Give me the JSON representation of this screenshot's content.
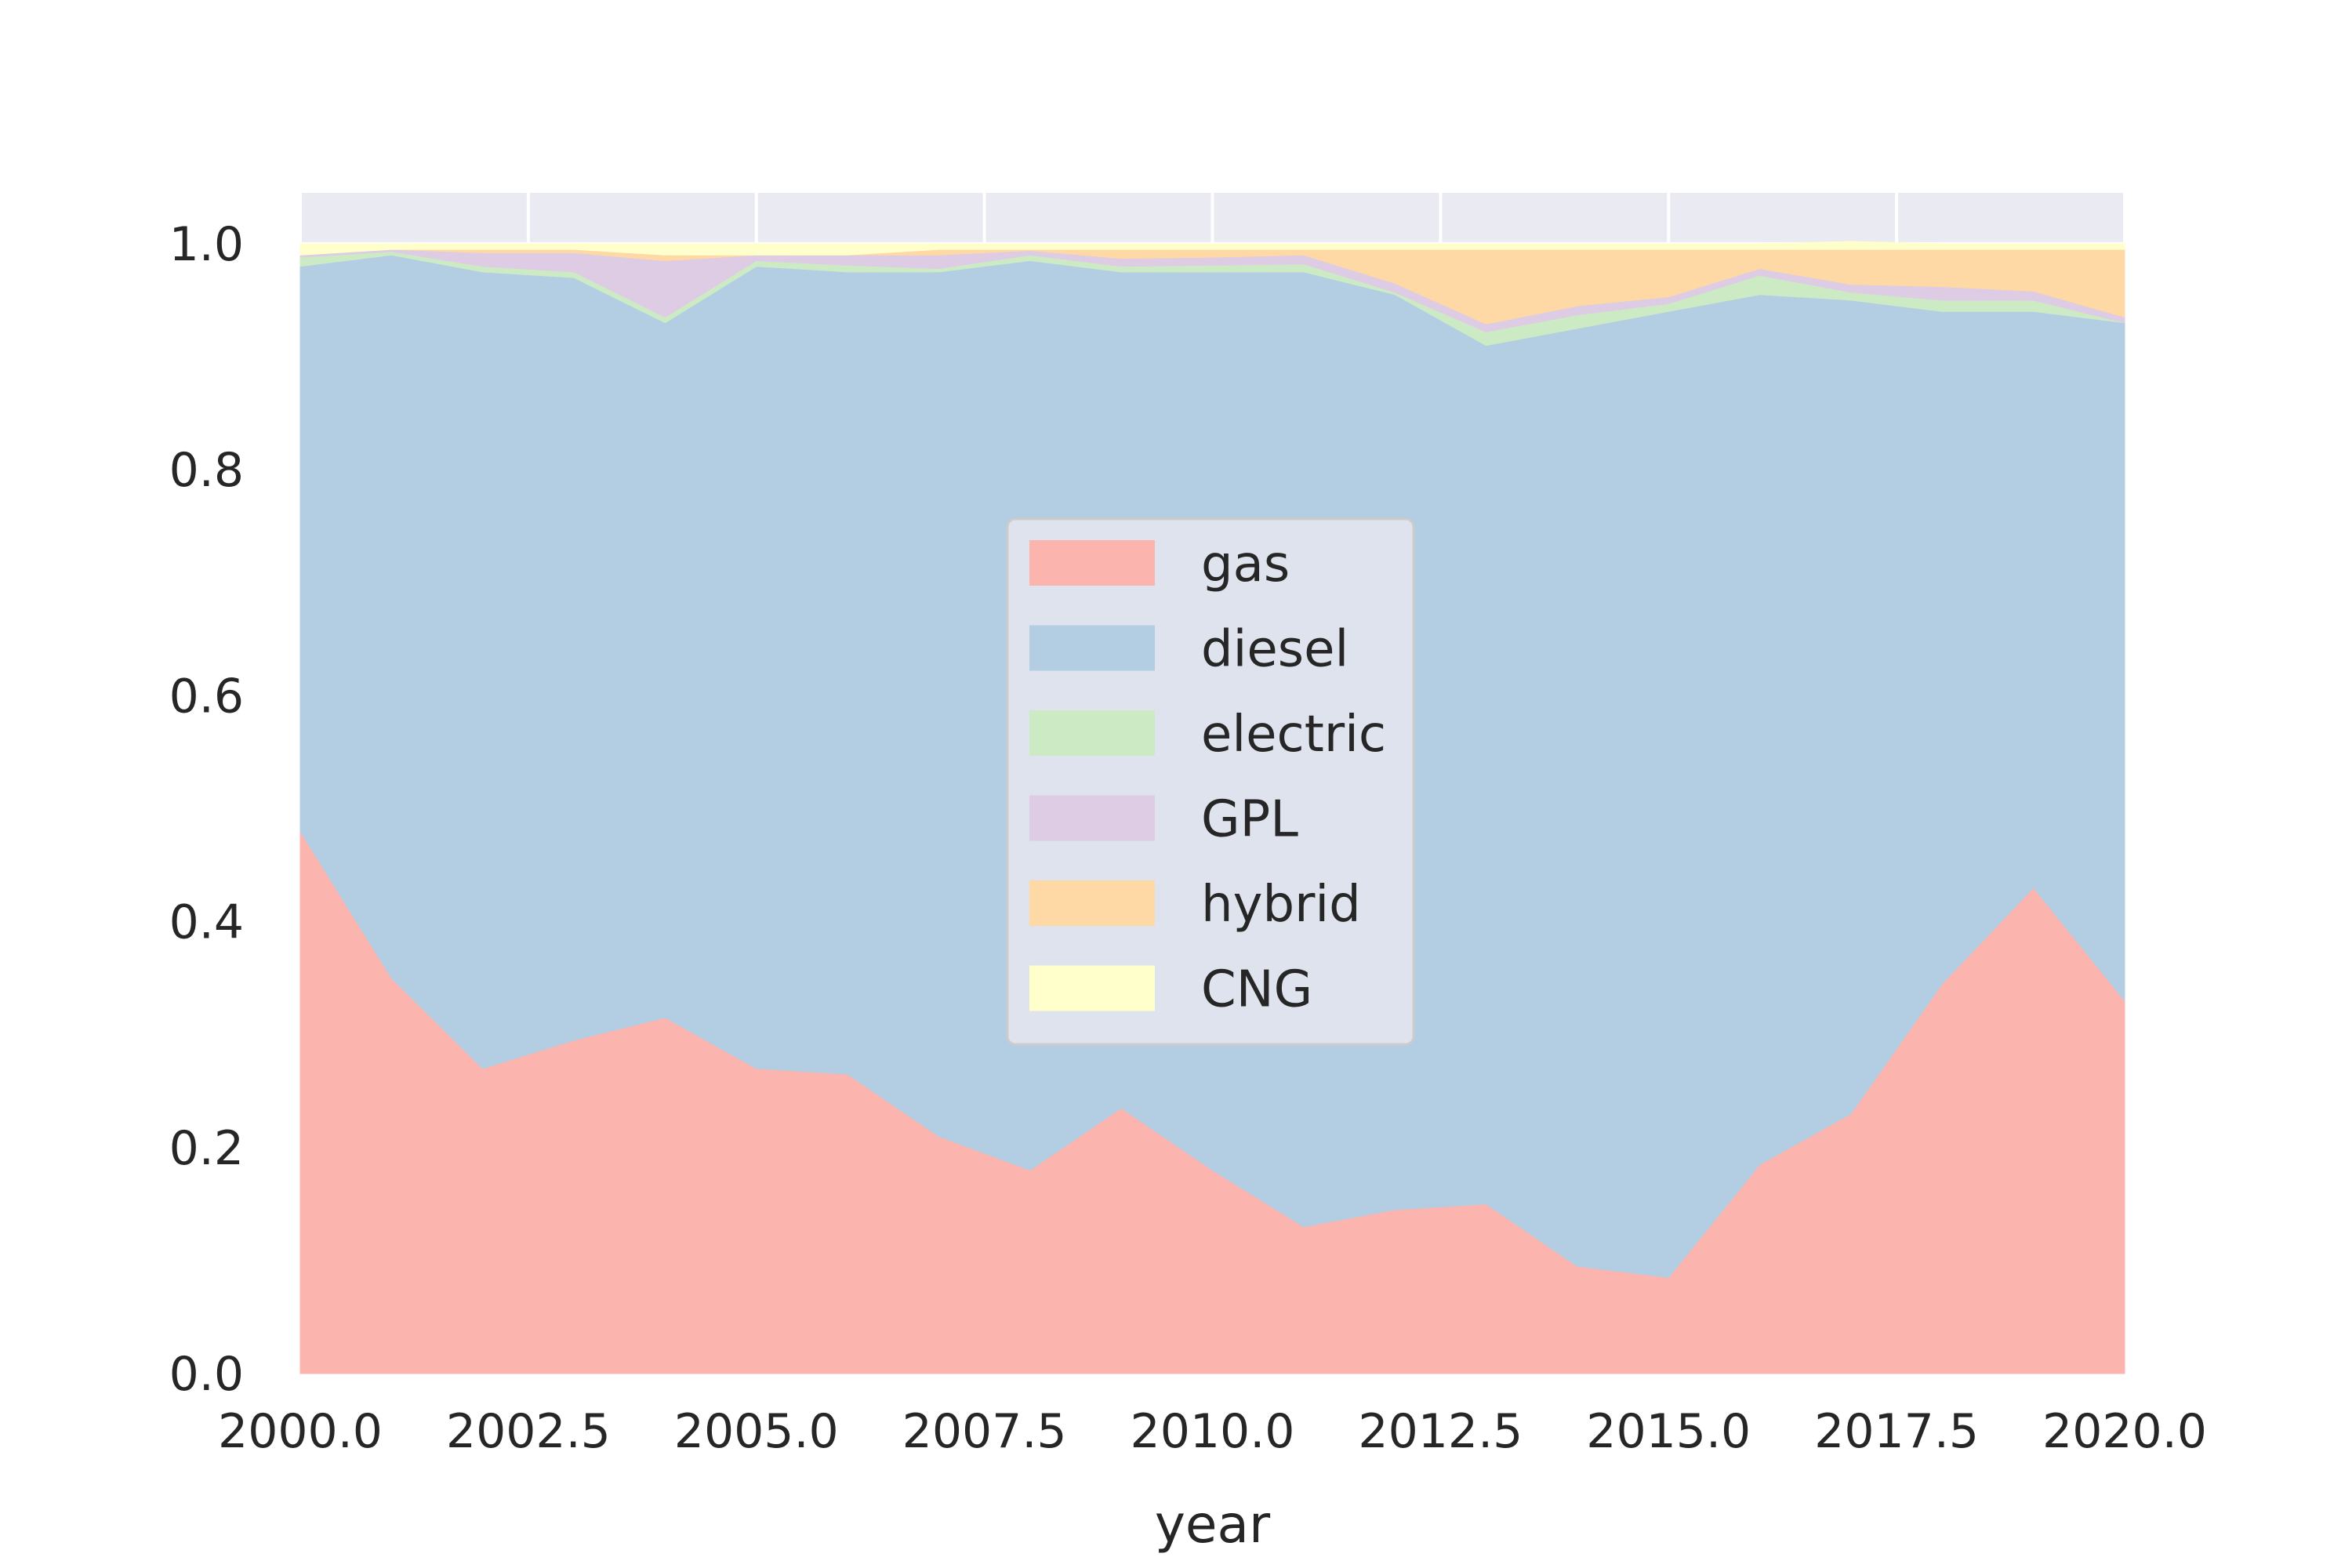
{
  "chart_data": {
    "type": "area",
    "stacked": true,
    "xlabel": "year",
    "ylabel": "",
    "xlim": [
      2000,
      2020
    ],
    "ylim": [
      0,
      1.045
    ],
    "x_ticks": [
      2000,
      2002.5,
      2005,
      2007.5,
      2010,
      2012.5,
      2015,
      2017.5,
      2020
    ],
    "x_tick_labels": [
      "2000.0",
      "2002.5",
      "2005.0",
      "2007.5",
      "2010.0",
      "2012.5",
      "2015.0",
      "2017.5",
      "2020.0"
    ],
    "y_ticks": [
      0,
      0.2,
      0.4,
      0.6,
      0.8,
      1.0
    ],
    "y_tick_labels": [
      "0.0",
      "0.2",
      "0.4",
      "0.6",
      "0.8",
      "1.0"
    ],
    "grid": true,
    "legend_position": "center",
    "x": [
      2000,
      2001,
      2002,
      2003,
      2004,
      2005,
      2006,
      2007,
      2008,
      2009,
      2010,
      2011,
      2012,
      2013,
      2014,
      2015,
      2016,
      2017,
      2018,
      2019,
      2020
    ],
    "series": [
      {
        "name": "gas",
        "color": "#fbb4ae",
        "values": [
          0.48,
          0.35,
          0.27,
          0.295,
          0.315,
          0.27,
          0.265,
          0.21,
          0.18,
          0.235,
          0.18,
          0.13,
          0.145,
          0.15,
          0.095,
          0.085,
          0.185,
          0.23,
          0.345,
          0.43,
          0.33
        ]
      },
      {
        "name": "diesel",
        "color": "#b3cde3",
        "values": [
          0.5,
          0.64,
          0.705,
          0.675,
          0.615,
          0.71,
          0.71,
          0.765,
          0.805,
          0.74,
          0.795,
          0.845,
          0.81,
          0.76,
          0.83,
          0.855,
          0.77,
          0.72,
          0.595,
          0.51,
          0.6
        ]
      },
      {
        "name": "electric",
        "color": "#ccebc5",
        "values": [
          0.008,
          0.003,
          0.005,
          0.005,
          0.005,
          0.005,
          0.006,
          0.003,
          0.005,
          0.005,
          0.006,
          0.007,
          0.002,
          0.012,
          0.012,
          0.007,
          0.017,
          0.007,
          0.01,
          0.01,
          0.0
        ]
      },
      {
        "name": "GPL",
        "color": "#decbe4",
        "values": [
          0.002,
          0.002,
          0.012,
          0.017,
          0.05,
          0.005,
          0.009,
          0.012,
          0.004,
          0.007,
          0.007,
          0.008,
          0.008,
          0.007,
          0.008,
          0.006,
          0.006,
          0.007,
          0.012,
          0.008,
          0.005
        ]
      },
      {
        "name": "hybrid",
        "color": "#fed9a6",
        "values": [
          0.0,
          0.0,
          0.003,
          0.003,
          0.005,
          0.0,
          0.0,
          0.005,
          0.001,
          0.008,
          0.007,
          0.005,
          0.03,
          0.066,
          0.05,
          0.042,
          0.017,
          0.031,
          0.033,
          0.037,
          0.06
        ]
      },
      {
        "name": "CNG",
        "color": "#ffffcc",
        "values": [
          0.01,
          0.005,
          0.005,
          0.005,
          0.01,
          0.01,
          0.01,
          0.005,
          0.005,
          0.005,
          0.005,
          0.005,
          0.005,
          0.005,
          0.005,
          0.005,
          0.005,
          0.007,
          0.005,
          0.005,
          0.005
        ]
      }
    ]
  },
  "style": {
    "plot_background": "#eaeaf2",
    "grid_color": "#ffffff",
    "legend_background": "#dfe3ed",
    "legend_border": "#cccccc",
    "text_color": "#262626"
  }
}
